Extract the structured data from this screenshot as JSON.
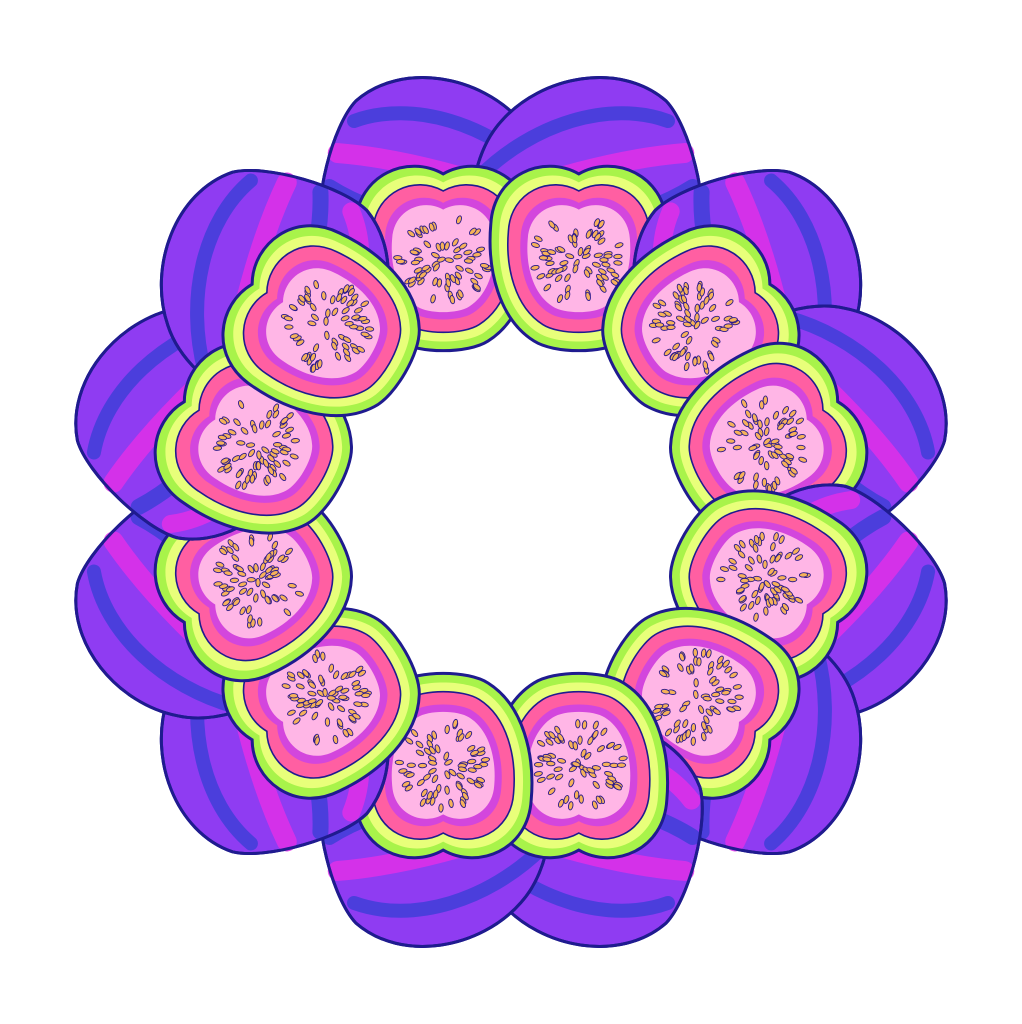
{
  "artwork": {
    "subject": "fig-kaleidoscope",
    "wedge_count": 6,
    "colors": {
      "background": "#ffffff",
      "outline": "#1f1b8f",
      "skin_base": "#8f3cf2",
      "skin_stripe": "#e12fe8",
      "skin_stripe_dark": "#3f3ed8",
      "skin_highlight": "#b25cff",
      "stem": "#ff9f1a",
      "stem_tip": "#2f78d8",
      "rind_outer": "#a8f34a",
      "rind_inner": "#e8ff7a",
      "flesh": "#ff5fa2",
      "flesh_inner": "#ff8fc8",
      "pulp_ring": "#c43df0",
      "seed_zone": "#ffb6e6",
      "seed_fill": "#f6b25a",
      "seed_outline": "#2a1a8a"
    }
  }
}
